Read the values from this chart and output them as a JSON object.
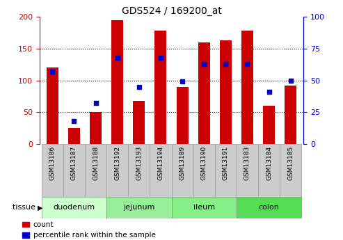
{
  "title": "GDS524 / 169200_at",
  "samples": [
    "GSM13186",
    "GSM13187",
    "GSM13188",
    "GSM13192",
    "GSM13193",
    "GSM13194",
    "GSM13189",
    "GSM13190",
    "GSM13191",
    "GSM13183",
    "GSM13184",
    "GSM13185"
  ],
  "counts": [
    120,
    25,
    50,
    195,
    68,
    178,
    90,
    160,
    163,
    178,
    60,
    92
  ],
  "percentiles": [
    57,
    18,
    32,
    68,
    45,
    68,
    49,
    63,
    63,
    63,
    41,
    50
  ],
  "ylim_left": [
    0,
    200
  ],
  "ylim_right": [
    0,
    100
  ],
  "yticks_left": [
    0,
    50,
    100,
    150,
    200
  ],
  "yticks_right": [
    0,
    25,
    50,
    75,
    100
  ],
  "tissue_groups": [
    {
      "label": "duodenum",
      "indices": [
        0,
        1,
        2
      ],
      "color": "#ccffcc"
    },
    {
      "label": "jejunum",
      "indices": [
        3,
        4,
        5
      ],
      "color": "#99ee99"
    },
    {
      "label": "ileum",
      "indices": [
        6,
        7,
        8
      ],
      "color": "#88dd88"
    },
    {
      "label": "colon",
      "indices": [
        9,
        10,
        11
      ],
      "color": "#66dd66"
    }
  ],
  "bar_color": "#cc0000",
  "dot_color": "#0000cc",
  "left_axis_color": "#cc0000",
  "right_axis_color": "#0000cc",
  "bg_color": "#ffffff",
  "sample_box_color": "#cccccc",
  "sample_box_edge": "#999999",
  "tissue_label": "tissue",
  "legend_count": "count",
  "legend_percentile": "percentile rank within the sample",
  "bar_width": 0.55,
  "title_fontsize": 10,
  "tick_fontsize": 8,
  "sample_fontsize": 6.5,
  "tissue_fontsize": 8,
  "legend_fontsize": 7.5
}
